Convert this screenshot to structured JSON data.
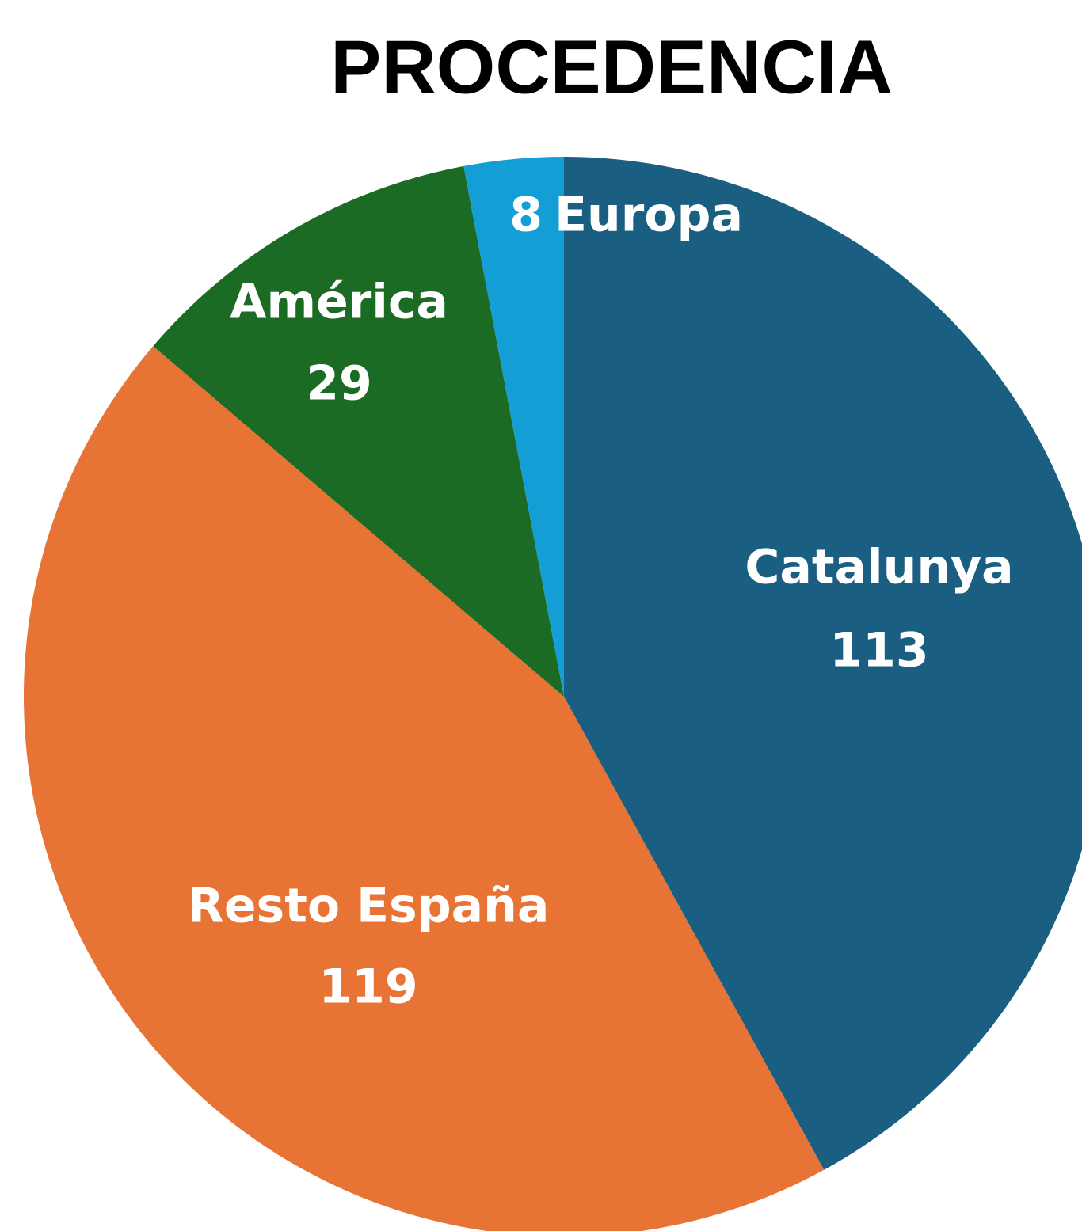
{
  "chart_data": {
    "type": "pie",
    "title": "PROCEDENCIA",
    "categories": [
      "Catalunya",
      "Resto España",
      "América",
      "Europa"
    ],
    "values": [
      113,
      119,
      29,
      8
    ],
    "colors": [
      "#1a5f82",
      "#e77335",
      "#1c6b24",
      "#139fd6"
    ]
  }
}
